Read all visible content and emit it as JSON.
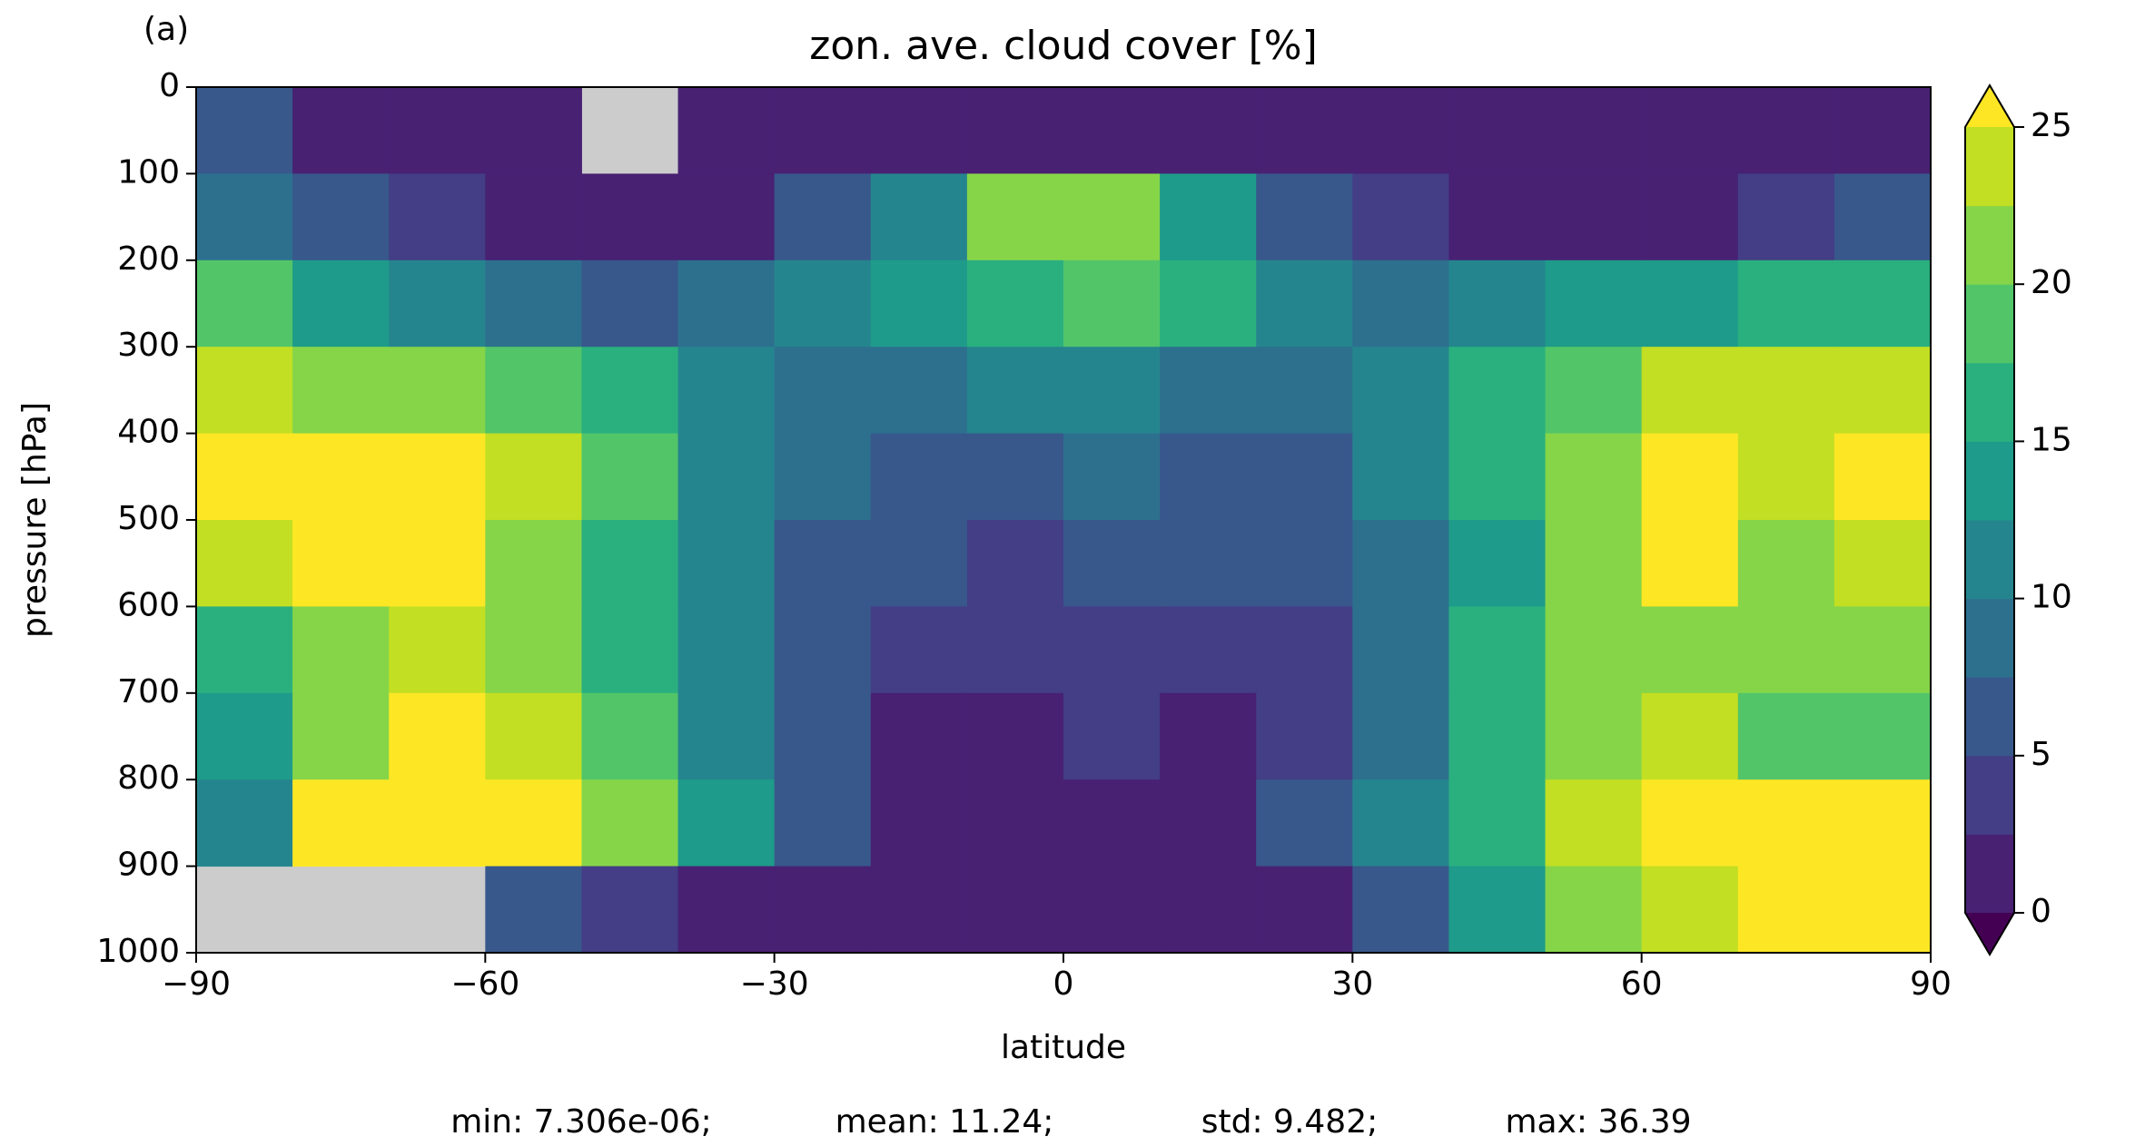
{
  "chart_data": {
    "type": "contour",
    "panel_label": "(a)",
    "title": "zon. ave. cloud cover [%]",
    "xlabel": "latitude",
    "ylabel": "pressure [hPa]",
    "x": [
      -85,
      -75,
      -65,
      -55,
      -45,
      -35,
      -25,
      -15,
      -5,
      5,
      15,
      25,
      35,
      45,
      55,
      65,
      75,
      85
    ],
    "y": [
      50,
      150,
      250,
      350,
      450,
      550,
      650,
      750,
      850,
      950
    ],
    "z": [
      [
        6,
        2,
        1,
        1,
        null,
        1,
        1,
        1,
        1,
        1,
        1,
        1,
        1,
        1,
        1,
        1,
        1,
        1
      ],
      [
        9,
        7,
        4,
        2,
        1,
        2,
        5,
        12,
        22,
        22,
        14,
        6,
        3,
        2,
        1,
        2,
        4,
        6
      ],
      [
        18,
        14,
        10,
        8,
        7,
        9,
        11,
        14,
        17,
        19,
        15,
        11,
        9,
        11,
        13,
        14,
        16,
        17
      ],
      [
        24,
        21,
        21,
        19,
        16,
        12,
        9,
        9,
        11,
        11,
        9,
        9,
        12,
        15,
        19,
        23,
        23,
        24
      ],
      [
        26,
        26,
        26,
        23,
        18,
        12,
        8,
        7,
        7,
        9,
        7,
        6,
        10,
        15,
        21,
        26,
        23,
        26
      ],
      [
        23,
        26,
        26,
        22,
        17,
        11,
        7,
        6,
        4,
        6,
        5,
        5,
        9,
        14,
        20,
        25,
        22,
        23
      ],
      [
        17,
        22,
        24,
        22,
        17,
        11,
        6,
        4,
        4,
        4,
        3,
        4,
        9,
        15,
        21,
        22,
        20,
        21
      ],
      [
        14,
        22,
        26,
        23,
        18,
        12,
        6,
        2,
        2,
        3,
        1,
        4,
        9,
        15,
        21,
        23,
        19,
        19
      ],
      [
        12,
        25,
        26,
        26,
        20,
        13,
        6,
        2,
        1,
        2,
        2,
        5,
        10,
        17,
        24,
        26,
        26,
        26
      ],
      [
        null,
        null,
        null,
        6,
        4,
        2,
        1,
        1,
        1,
        1,
        1,
        2,
        6,
        13,
        20,
        24,
        26,
        26
      ]
    ],
    "xlim": [
      -90,
      90
    ],
    "xticks": [
      {
        "value": -90,
        "label": "−90"
      },
      {
        "value": -60,
        "label": "−60"
      },
      {
        "value": -30,
        "label": "−30"
      },
      0,
      30,
      60,
      90
    ],
    "ylim": [
      1000,
      0
    ],
    "yticks": [
      0,
      100,
      200,
      300,
      400,
      500,
      600,
      700,
      800,
      900,
      1000
    ],
    "levels": [
      0,
      2.5,
      5,
      7.5,
      10,
      12.5,
      15,
      17.5,
      20,
      22.5,
      25
    ],
    "colors": [
      "#482173",
      "#433e85",
      "#38588c",
      "#2d708e",
      "#25858e",
      "#1e9b8a",
      "#2ab07f",
      "#52c569",
      "#86d549",
      "#c2df23"
    ],
    "under_color": "#440154",
    "over_color": "#fde725",
    "missing_color": "#cccccc",
    "colorbar_ticks": [
      0,
      5,
      10,
      15,
      20,
      25
    ],
    "stats": [
      "min: 7.306e-06;",
      "mean: 11.24;",
      "std: 9.482;",
      "max: 36.39"
    ]
  }
}
